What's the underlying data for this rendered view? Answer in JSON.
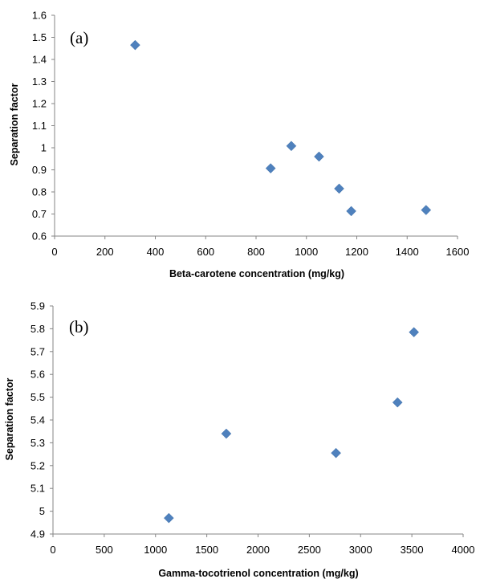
{
  "chart_data": [
    {
      "type": "scatter",
      "panel_label": "(a)",
      "xlabel": "Beta-carotene concentration (mg/kg)",
      "ylabel": "Separation factor",
      "xlim": [
        0,
        1600
      ],
      "ylim": [
        0.6,
        1.6
      ],
      "xticks": [
        "0",
        "200",
        "400",
        "600",
        "800",
        "1000",
        "1200",
        "1400",
        "1600"
      ],
      "yticks": [
        "0.6",
        "0.7",
        "0.8",
        "0.9",
        "1",
        "1.1",
        "1.2",
        "1.3",
        "1.4",
        "1.5",
        "1.6"
      ],
      "grid": false,
      "marker": "diamond",
      "color": "#4F81BD",
      "points": [
        {
          "x": 320,
          "y": 1.465
        },
        {
          "x": 858,
          "y": 0.907
        },
        {
          "x": 940,
          "y": 1.008
        },
        {
          "x": 1050,
          "y": 0.96
        },
        {
          "x": 1130,
          "y": 0.815
        },
        {
          "x": 1178,
          "y": 0.713
        },
        {
          "x": 1475,
          "y": 0.718
        }
      ]
    },
    {
      "type": "scatter",
      "panel_label": "(b)",
      "xlabel": "Gamma-tocotrienol  concentration  (mg/kg)",
      "ylabel": "Separation factor",
      "xlim": [
        0,
        4000
      ],
      "ylim": [
        4.9,
        5.9
      ],
      "xticks": [
        "0",
        "500",
        "1000",
        "1500",
        "2000",
        "2500",
        "3000",
        "3500",
        "4000"
      ],
      "yticks": [
        "4.9",
        "5",
        "5.1",
        "5.2",
        "5.3",
        "5.4",
        "5.5",
        "5.6",
        "5.7",
        "5.8",
        "5.9"
      ],
      "grid": false,
      "marker": "diamond",
      "color": "#4F81BD",
      "points": [
        {
          "x": 1130,
          "y": 4.97
        },
        {
          "x": 1690,
          "y": 5.34
        },
        {
          "x": 2760,
          "y": 5.255
        },
        {
          "x": 3360,
          "y": 5.477
        },
        {
          "x": 3520,
          "y": 5.785
        }
      ]
    }
  ]
}
